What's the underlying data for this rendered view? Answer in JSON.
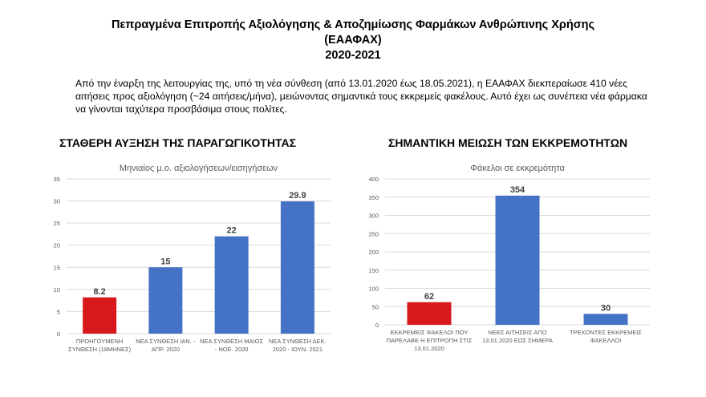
{
  "title": {
    "line1": "Πεπραγμένα Επιτροπής Αξιολόγησης & Αποζημίωσης Φαρμάκων Ανθρώπινης Χρήσης",
    "line2": "(ΕΑΑΦΑΧ)",
    "line3": "2020-2021"
  },
  "intro": "Από την έναρξη της λειτουργίας της, υπό τη νέα σύνθεση (από 13.01.2020 έως 18.05.2021), η ΕΑΑΦΑΧ διεκπεραίωσε 410 νέες αιτήσεις προς αξιολόγηση (~24 αιτήσεις/μήνα), μειώνοντας σημαντικά τους εκκρεμείς φακέλους. Αυτό έχει ως συνέπεια νέα φάρμακα να γίνονται ταχύτερα προσβάσιμα στους πολίτες.",
  "headings": {
    "left": "ΣΤΑΘΕΡΗ ΑΥΞΗΣΗ ΤΗΣ ΠΑΡΑΓΩΓΙΚΟΤΗΤΑΣ",
    "right": "ΣΗΜΑΝΤΙΚΗ ΜΕΙΩΣΗ ΤΩΝ ΕΚΚΡΕΜΟΤΗΤΩΝ"
  },
  "colors": {
    "red": "#d7191c",
    "blue": "#4472c4",
    "grid": "#d9d9d9"
  },
  "chart_data": [
    {
      "type": "bar",
      "title": "Μηνιαίος μ.ο. αξιολογήσεων/εισηγήσεων",
      "categories": [
        [
          "ΠΡΟΗΓΟΥΜΕΝΗ",
          "ΣΥΝΘΕΣΗ (18ΜΗΝΕΣ)"
        ],
        [
          "ΝΕΑ ΣΥΝΘΕΣΗ ΙΑΝ. -",
          "ΑΠΡ. 2020"
        ],
        [
          "ΝΕΑ ΣΥΝΘΕΣΗ ΜΑΙΟΣ",
          "- ΝΟΕ. 2020"
        ],
        [
          "ΝΕΑ ΣΥΝΘΕΣΗ ΔΕΚ.",
          "2020 - ΙΟΥΝ. 2021"
        ]
      ],
      "values": [
        8.2,
        15,
        22,
        29.9
      ],
      "data_labels": [
        "8.2",
        "15",
        "22",
        "29.9"
      ],
      "bar_colors": [
        "#d7191c",
        "#4472c4",
        "#4472c4",
        "#4472c4"
      ],
      "ylim": [
        0,
        35
      ],
      "yticks": [
        0,
        5,
        10,
        15,
        20,
        25,
        30,
        35
      ],
      "grid": true
    },
    {
      "type": "bar",
      "title": "Φάκελοι σε εκκρεμότητα",
      "categories": [
        [
          "ΕΚΚΡΕΜΕΙΣ ΦΑΚΕΛΟΙ ΠΟΥ",
          "ΠΑΡΕΛΑΒΕ Η ΕΠΙΤΡΟΠΗ ΣΤΙΣ",
          "13.01.2020"
        ],
        [
          "ΝΕΕΣ ΑΙΤΗΣΕΙΣ ΑΠΟ",
          "13.01.2020 ΕΩΣ ΣΗΜΕΡΑ"
        ],
        [
          "ΤΡΕΧΟΝΤΕΣ ΕΚΚΡΕΜΕΙΣ",
          "ΦΑΚΕΛΛΟΙ"
        ]
      ],
      "values": [
        62,
        354,
        30
      ],
      "data_labels": [
        "62",
        "354",
        "30"
      ],
      "bar_colors": [
        "#d7191c",
        "#4472c4",
        "#4472c4"
      ],
      "ylim": [
        0,
        400
      ],
      "yticks": [
        0,
        50,
        100,
        150,
        200,
        250,
        300,
        350,
        400
      ],
      "grid": true
    }
  ]
}
